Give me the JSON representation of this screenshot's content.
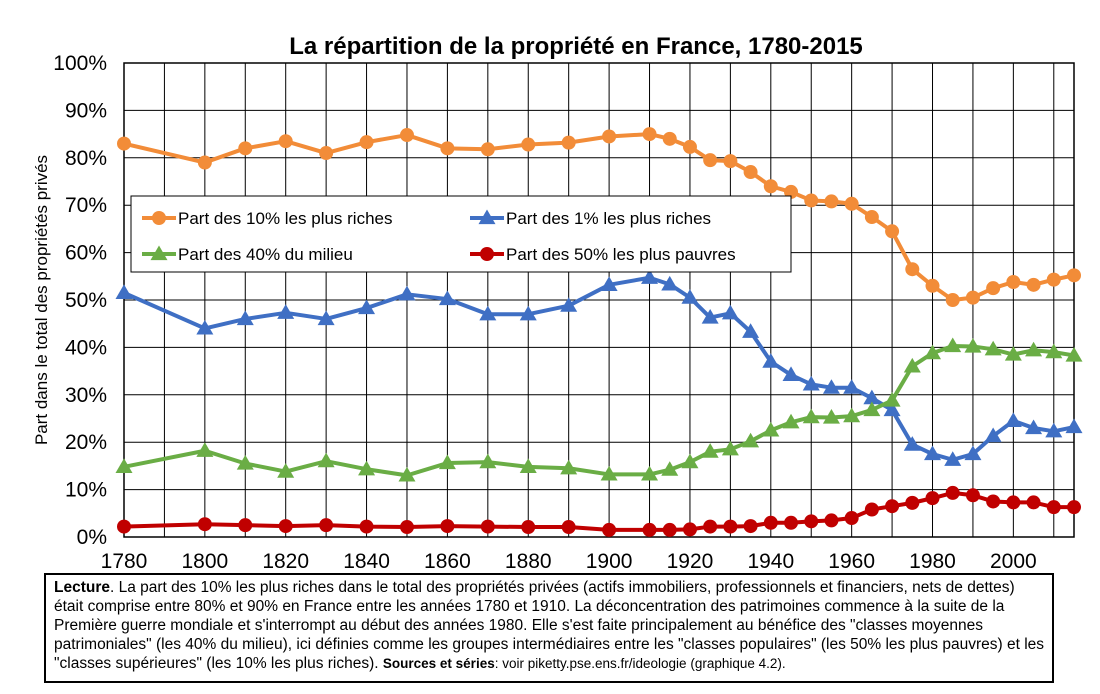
{
  "chart_data": {
    "type": "line",
    "title": "La répartition de la propriété en France, 1780-2015",
    "ylabel": "Part dans le total des propriétés privés",
    "xlabel": "",
    "xlim": [
      1780,
      2015
    ],
    "ylim": [
      0,
      100
    ],
    "x_ticks": [
      1780,
      1800,
      1820,
      1840,
      1860,
      1880,
      1900,
      1920,
      1940,
      1960,
      1980,
      2000
    ],
    "x_tick_labels": [
      "1780",
      "1800",
      "1820",
      "1840",
      "1860",
      "1880",
      "1900",
      "1920",
      "1940",
      "1960",
      "1980",
      "2000"
    ],
    "y_ticks": [
      0,
      10,
      20,
      30,
      40,
      50,
      60,
      70,
      80,
      90,
      100
    ],
    "y_tick_labels": [
      "0%",
      "10%",
      "20%",
      "30%",
      "40%",
      "50%",
      "60%",
      "70%",
      "80%",
      "90%",
      "100%"
    ],
    "grid": true,
    "legend_position": "middle-left",
    "series": [
      {
        "name": "Part des 10% les plus riches",
        "color": "#F28C38",
        "marker": "circle",
        "points": [
          [
            1780,
            83.0
          ],
          [
            1800,
            79.0
          ],
          [
            1810,
            82.0
          ],
          [
            1820,
            83.5
          ],
          [
            1830,
            81.0
          ],
          [
            1840,
            83.3
          ],
          [
            1850,
            84.8
          ],
          [
            1860,
            82.0
          ],
          [
            1870,
            81.8
          ],
          [
            1880,
            82.8
          ],
          [
            1890,
            83.2
          ],
          [
            1900,
            84.5
          ],
          [
            1910,
            85.0
          ],
          [
            1915,
            84.0
          ],
          [
            1920,
            82.3
          ],
          [
            1925,
            79.5
          ],
          [
            1930,
            79.3
          ],
          [
            1935,
            77.0
          ],
          [
            1940,
            74.0
          ],
          [
            1945,
            72.8
          ],
          [
            1950,
            71.0
          ],
          [
            1955,
            70.8
          ],
          [
            1960,
            70.3
          ],
          [
            1965,
            67.5
          ],
          [
            1970,
            64.5
          ],
          [
            1975,
            56.5
          ],
          [
            1980,
            53.0
          ],
          [
            1985,
            50.0
          ],
          [
            1990,
            50.5
          ],
          [
            1995,
            52.5
          ],
          [
            2000,
            53.8
          ],
          [
            2005,
            53.2
          ],
          [
            2010,
            54.3
          ],
          [
            2015,
            55.2
          ]
        ]
      },
      {
        "name": "Part des 1% les plus riches",
        "color": "#3F6FC4",
        "marker": "triangle",
        "points": [
          [
            1780,
            51.5
          ],
          [
            1800,
            44.0
          ],
          [
            1810,
            46.0
          ],
          [
            1820,
            47.3
          ],
          [
            1830,
            46.0
          ],
          [
            1840,
            48.3
          ],
          [
            1850,
            51.2
          ],
          [
            1860,
            50.2
          ],
          [
            1870,
            47.0
          ],
          [
            1880,
            47.0
          ],
          [
            1890,
            48.8
          ],
          [
            1900,
            53.2
          ],
          [
            1910,
            54.7
          ],
          [
            1915,
            53.3
          ],
          [
            1920,
            50.5
          ],
          [
            1925,
            46.3
          ],
          [
            1930,
            47.2
          ],
          [
            1935,
            43.3
          ],
          [
            1940,
            37.0
          ],
          [
            1945,
            34.2
          ],
          [
            1950,
            32.2
          ],
          [
            1955,
            31.5
          ],
          [
            1960,
            31.5
          ],
          [
            1965,
            29.3
          ],
          [
            1970,
            26.8
          ],
          [
            1975,
            19.5
          ],
          [
            1980,
            17.5
          ],
          [
            1985,
            16.3
          ],
          [
            1990,
            17.5
          ],
          [
            1995,
            21.3
          ],
          [
            2000,
            24.5
          ],
          [
            2005,
            23.0
          ],
          [
            2010,
            22.3
          ],
          [
            2015,
            23.2
          ]
        ]
      },
      {
        "name": "Part des 40% du milieu",
        "color": "#6AAD45",
        "marker": "triangle",
        "points": [
          [
            1780,
            14.8
          ],
          [
            1800,
            18.2
          ],
          [
            1810,
            15.5
          ],
          [
            1820,
            13.8
          ],
          [
            1830,
            16.0
          ],
          [
            1840,
            14.3
          ],
          [
            1850,
            13.0
          ],
          [
            1860,
            15.6
          ],
          [
            1870,
            15.8
          ],
          [
            1880,
            14.8
          ],
          [
            1890,
            14.5
          ],
          [
            1900,
            13.2
          ],
          [
            1910,
            13.2
          ],
          [
            1915,
            14.2
          ],
          [
            1920,
            15.8
          ],
          [
            1925,
            18.0
          ],
          [
            1930,
            18.5
          ],
          [
            1935,
            20.2
          ],
          [
            1940,
            22.5
          ],
          [
            1945,
            24.2
          ],
          [
            1950,
            25.3
          ],
          [
            1955,
            25.2
          ],
          [
            1960,
            25.5
          ],
          [
            1965,
            26.8
          ],
          [
            1970,
            28.8
          ],
          [
            1975,
            36.0
          ],
          [
            1980,
            38.8
          ],
          [
            1985,
            40.3
          ],
          [
            1990,
            40.2
          ],
          [
            1995,
            39.6
          ],
          [
            2000,
            38.5
          ],
          [
            2005,
            39.4
          ],
          [
            2010,
            39.0
          ],
          [
            2015,
            38.3
          ]
        ]
      },
      {
        "name": "Part des 50% les plus pauvres",
        "color": "#C00000",
        "marker": "circle",
        "points": [
          [
            1780,
            2.2
          ],
          [
            1800,
            2.7
          ],
          [
            1810,
            2.5
          ],
          [
            1820,
            2.3
          ],
          [
            1830,
            2.5
          ],
          [
            1840,
            2.2
          ],
          [
            1850,
            2.1
          ],
          [
            1860,
            2.3
          ],
          [
            1870,
            2.2
          ],
          [
            1880,
            2.1
          ],
          [
            1890,
            2.1
          ],
          [
            1900,
            1.5
          ],
          [
            1910,
            1.5
          ],
          [
            1915,
            1.5
          ],
          [
            1920,
            1.6
          ],
          [
            1925,
            2.2
          ],
          [
            1930,
            2.2
          ],
          [
            1935,
            2.3
          ],
          [
            1940,
            3.0
          ],
          [
            1945,
            3.0
          ],
          [
            1950,
            3.3
          ],
          [
            1955,
            3.5
          ],
          [
            1960,
            4.0
          ],
          [
            1965,
            5.8
          ],
          [
            1970,
            6.5
          ],
          [
            1975,
            7.2
          ],
          [
            1980,
            8.2
          ],
          [
            1985,
            9.3
          ],
          [
            1990,
            8.8
          ],
          [
            1995,
            7.5
          ],
          [
            2000,
            7.3
          ],
          [
            2005,
            7.3
          ],
          [
            2010,
            6.3
          ],
          [
            2015,
            6.3
          ]
        ]
      }
    ]
  },
  "note": {
    "lead": "Lecture",
    "text": ". La part des 10% les plus riches dans le total des propriétés privées (actifs immobiliers, professionnels et financiers, nets de dettes) était comprise entre 80% et 90% en France entre les années 1780 et 1910. La déconcentration des patrimoines commence à la suite de la Première guerre mondiale et s'interrompt au début des années 1980. Elle s'est faite principalement au bénéfice des \"classes moyennes patrimoniales\" (les 40% du milieu), ici définies comme les groupes intermédiaires entre les \"classes populaires\" (les 50% les plus pauvres) et les \"classes supérieures\" (les 10% les plus riches).",
    "sources_label": "Sources et séries",
    "sources_text": ": voir piketty.pse.ens.fr/ideologie (graphique 4.2)."
  }
}
